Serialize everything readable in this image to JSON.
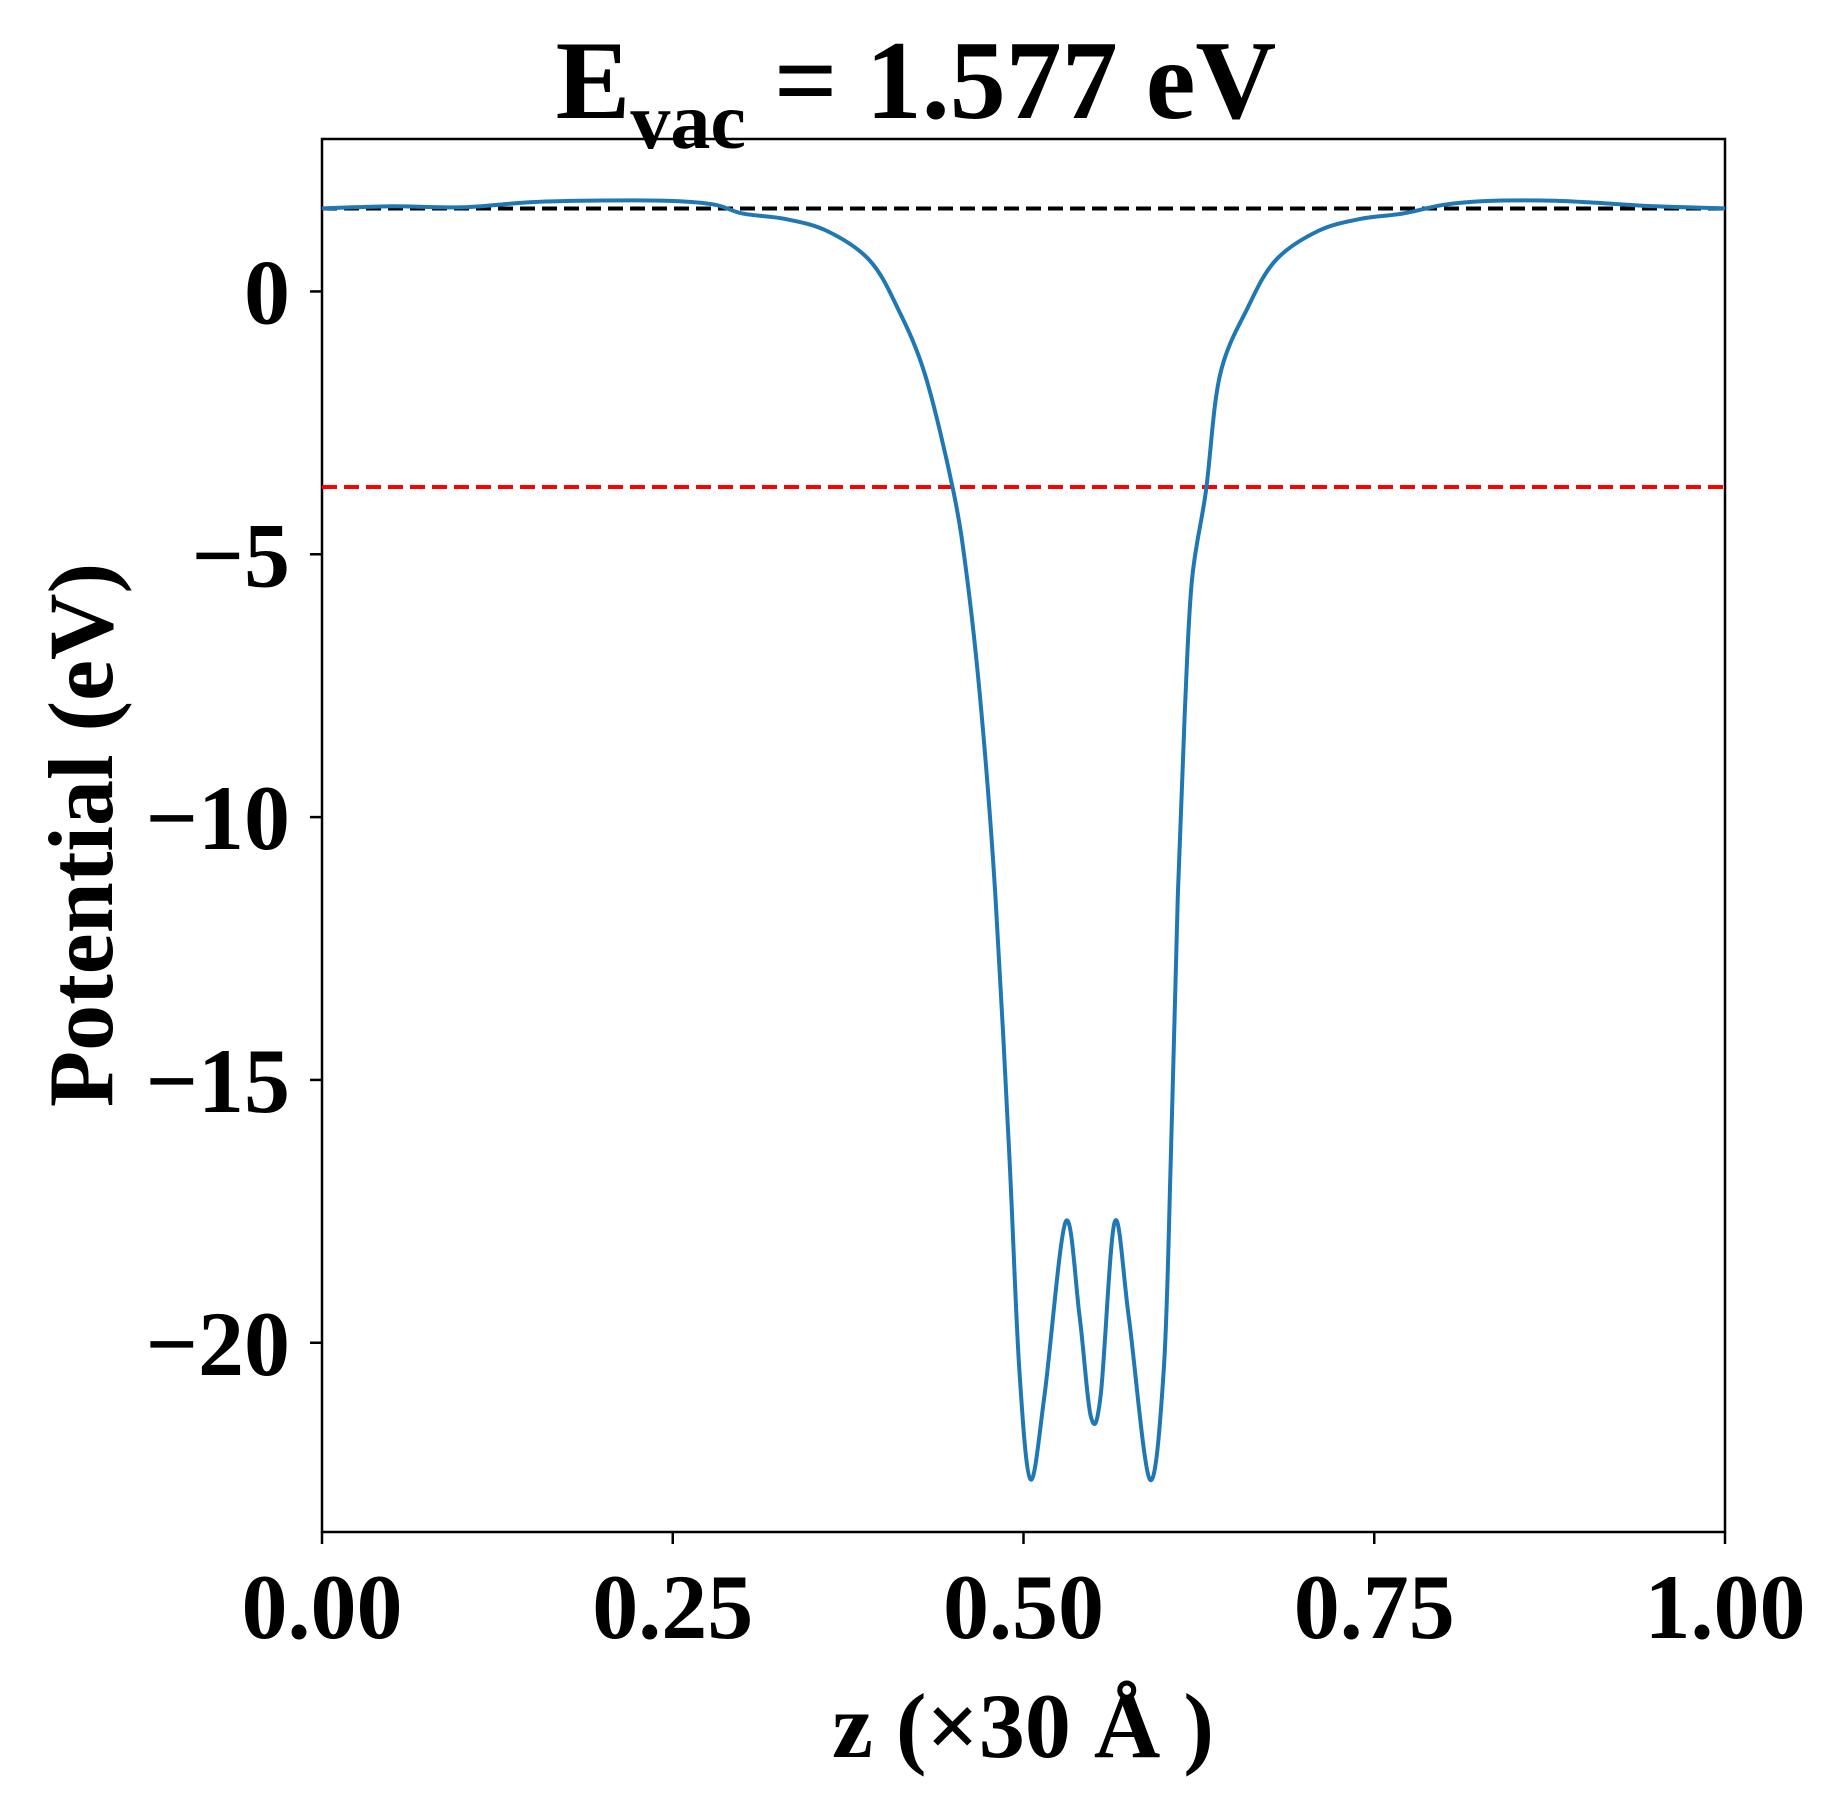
{
  "chart_data": {
    "type": "line",
    "title": {
      "prefix": "E",
      "subscript": "vac",
      "suffix": " = 1.577 eV"
    },
    "xlabel": "z (×30 Å )",
    "ylabel": "Potential (eV)",
    "xlim": [
      0,
      1
    ],
    "ylim": [
      -23.6,
      2.9
    ],
    "x_ticks": [
      {
        "value": 0.0,
        "label": "0.00"
      },
      {
        "value": 0.25,
        "label": "0.25"
      },
      {
        "value": 0.5,
        "label": "0.50"
      },
      {
        "value": 0.75,
        "label": "0.75"
      },
      {
        "value": 1.0,
        "label": "1.00"
      }
    ],
    "y_ticks": [
      {
        "value": 0,
        "label": "0"
      },
      {
        "value": -5,
        "label": "−5"
      },
      {
        "value": -10,
        "label": "−10"
      },
      {
        "value": -15,
        "label": "−15"
      },
      {
        "value": -20,
        "label": "−20"
      }
    ],
    "grid": false,
    "reference_lines": [
      {
        "y": 1.577,
        "color": "#000000",
        "style": "dashed"
      },
      {
        "y": -3.72,
        "color": "#ff0000",
        "style": "dashed"
      }
    ],
    "series": [
      {
        "color": "#1f77b4",
        "x": [
          0.0,
          0.05,
          0.1,
          0.15,
          0.2,
          0.25,
          0.28,
          0.3,
          0.33,
          0.36,
          0.39,
          0.41,
          0.43,
          0.45,
          0.46,
          0.47,
          0.48,
          0.49,
          0.497,
          0.505,
          0.515,
          0.53,
          0.54,
          0.548,
          0.555,
          0.565,
          0.575,
          0.59,
          0.6,
          0.605,
          0.61,
          0.615,
          0.62,
          0.63,
          0.64,
          0.66,
          0.68,
          0.71,
          0.74,
          0.77,
          0.8,
          0.83,
          0.87,
          0.9,
          0.95,
          1.0
        ],
        "y": [
          1.58,
          1.62,
          1.6,
          1.7,
          1.73,
          1.72,
          1.65,
          1.48,
          1.38,
          1.15,
          0.6,
          -0.3,
          -1.6,
          -3.8,
          -5.5,
          -8.0,
          -11.5,
          -16.5,
          -20.5,
          -22.6,
          -21.0,
          -17.7,
          -19.5,
          -21.4,
          -21.0,
          -17.7,
          -19.5,
          -22.6,
          -20.5,
          -16.5,
          -11.5,
          -8.0,
          -5.5,
          -3.8,
          -1.6,
          -0.3,
          0.6,
          1.15,
          1.38,
          1.48,
          1.65,
          1.72,
          1.73,
          1.7,
          1.62,
          1.58
        ]
      }
    ]
  }
}
